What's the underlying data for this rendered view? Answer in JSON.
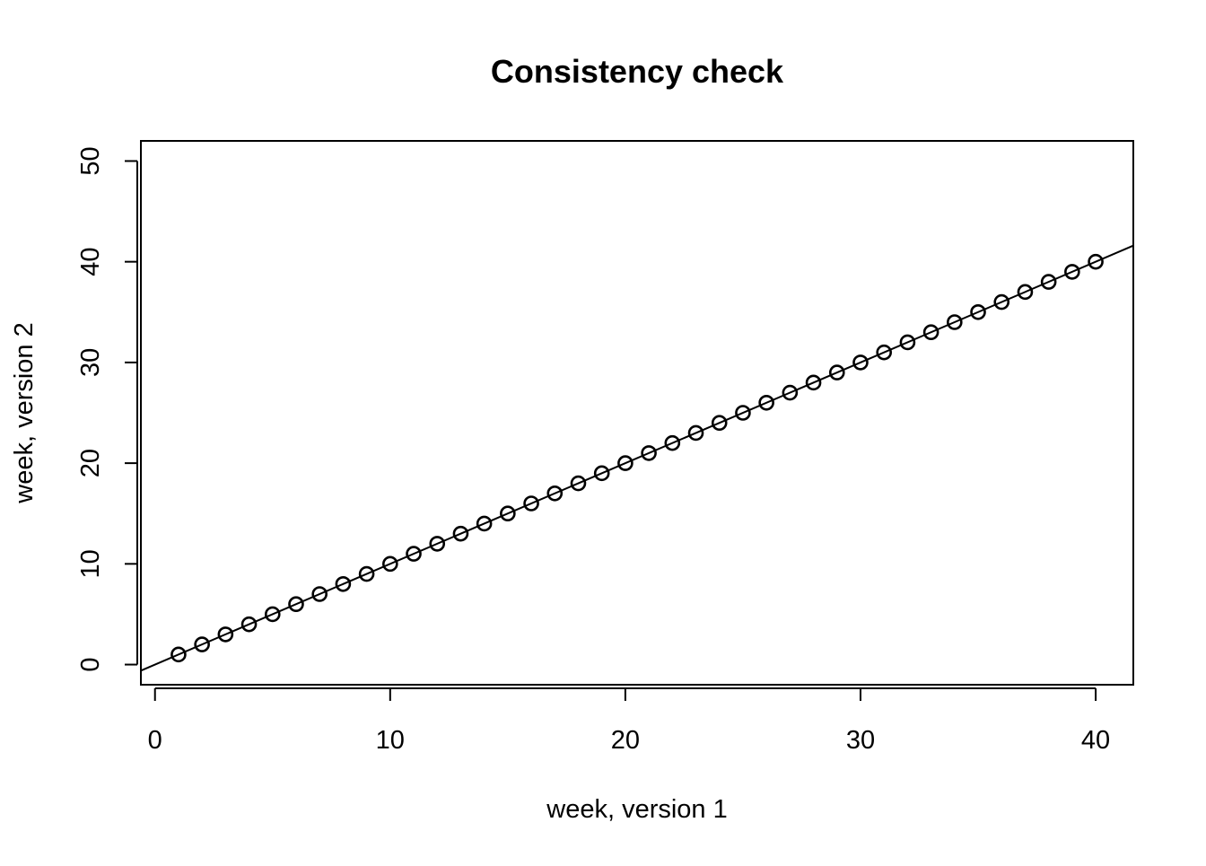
{
  "chart_data": {
    "type": "scatter",
    "title": "Consistency check",
    "xlabel": "week, version 1",
    "ylabel": "week, version 2",
    "xlim": [
      -0.6,
      41.6
    ],
    "ylim": [
      -2,
      52
    ],
    "xticks": [
      0,
      10,
      20,
      30,
      40
    ],
    "yticks": [
      0,
      10,
      20,
      30,
      40,
      50
    ],
    "grid": false,
    "legend": "none",
    "marker": "open-circle",
    "reference_line": {
      "intercept": 0,
      "slope": 1
    },
    "series": [
      {
        "x": [
          1,
          2,
          3,
          4,
          5,
          6,
          7,
          8,
          9,
          10,
          11,
          12,
          13,
          14,
          15,
          16,
          17,
          18,
          19,
          20,
          21,
          22,
          23,
          24,
          25,
          26,
          27,
          28,
          29,
          30,
          31,
          32,
          33,
          34,
          35,
          36,
          37,
          38,
          39,
          40
        ],
        "y": [
          1,
          2,
          3,
          4,
          5,
          6,
          7,
          8,
          9,
          10,
          11,
          12,
          13,
          14,
          15,
          16,
          17,
          18,
          19,
          20,
          21,
          22,
          23,
          24,
          25,
          26,
          27,
          28,
          29,
          30,
          31,
          32,
          33,
          34,
          35,
          36,
          37,
          38,
          39,
          40
        ]
      }
    ],
    "colors": {
      "points": "#000000",
      "line": "#000000",
      "background": "#ffffff"
    }
  }
}
